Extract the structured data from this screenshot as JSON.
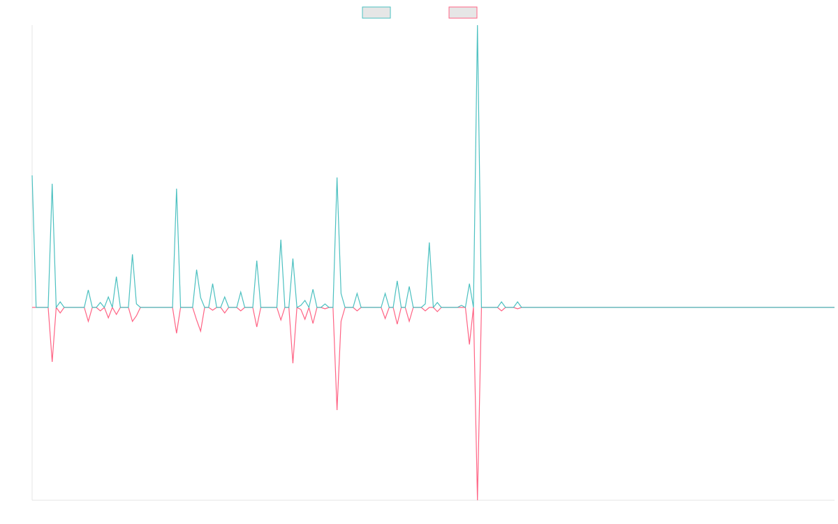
{
  "chart_data": {
    "type": "line",
    "legend": "top",
    "x": [
      0,
      1,
      2,
      3,
      4,
      5,
      6,
      7,
      8,
      9,
      10,
      11,
      12,
      13,
      14,
      15,
      16,
      17,
      18,
      19,
      20,
      21,
      22,
      23,
      24,
      25,
      26,
      27,
      28,
      29,
      30,
      31,
      32,
      33,
      34,
      35,
      36,
      37,
      38,
      39,
      40,
      41,
      42,
      43,
      44,
      45,
      46,
      47,
      48,
      49,
      50,
      51,
      52,
      53,
      54,
      55,
      56,
      57,
      58,
      59,
      60,
      61,
      62,
      63,
      64,
      65,
      66,
      67,
      68,
      69,
      70,
      71,
      72,
      73,
      74,
      75,
      76,
      77,
      78,
      79,
      80,
      81,
      82,
      83,
      84,
      85,
      86,
      87,
      88,
      89,
      90,
      91,
      92,
      93,
      94,
      95,
      96,
      97,
      98,
      99,
      100,
      101,
      102,
      103,
      104,
      105,
      106,
      107,
      108,
      109,
      110,
      111,
      112,
      113,
      114,
      115,
      116,
      117,
      118,
      119,
      120,
      121,
      122,
      200
    ],
    "xlim": [
      0,
      200
    ],
    "ylim": [
      -276,
      404
    ],
    "series": [
      {
        "color": "#ff6384",
        "values": [
          0,
          0,
          0,
          0,
          0,
          -78,
          0,
          -8,
          0,
          0,
          0,
          0,
          0,
          0,
          -20,
          0,
          0,
          -5,
          0,
          -15,
          0,
          -10,
          0,
          0,
          0,
          -20,
          -12,
          0,
          0,
          0,
          0,
          0,
          0,
          0,
          0,
          0,
          -37,
          0,
          0,
          0,
          0,
          -18,
          -34,
          0,
          0,
          -4,
          0,
          0,
          -8,
          0,
          0,
          0,
          -5,
          0,
          0,
          0,
          -28,
          0,
          0,
          0,
          0,
          0,
          -18,
          0,
          0,
          -80,
          0,
          -3,
          -17,
          0,
          -23,
          0,
          0,
          -2,
          0,
          0,
          -147,
          -20,
          0,
          0,
          0,
          -5,
          0,
          0,
          0,
          0,
          0,
          0,
          -16,
          0,
          0,
          -24,
          0,
          0,
          -20,
          0,
          0,
          0,
          -5,
          0,
          0,
          -6,
          0,
          0,
          0,
          0,
          0,
          0,
          0,
          -53,
          0,
          -276,
          0,
          0,
          0,
          0,
          0,
          -5,
          0,
          0,
          0,
          -2,
          0,
          0
        ]
      },
      {
        "color": "#4bc0c0",
        "values": [
          189,
          0,
          0,
          0,
          0,
          177,
          0,
          8,
          0,
          0,
          0,
          0,
          0,
          0,
          25,
          0,
          0,
          7,
          0,
          15,
          0,
          44,
          0,
          0,
          0,
          76,
          5,
          0,
          0,
          0,
          0,
          0,
          0,
          0,
          0,
          0,
          170,
          0,
          0,
          0,
          0,
          54,
          14,
          0,
          0,
          34,
          0,
          0,
          15,
          0,
          0,
          0,
          22,
          0,
          0,
          0,
          67,
          0,
          0,
          0,
          0,
          0,
          97,
          0,
          0,
          70,
          0,
          3,
          10,
          0,
          26,
          0,
          0,
          5,
          0,
          0,
          186,
          20,
          0,
          0,
          0,
          20,
          0,
          0,
          0,
          0,
          0,
          0,
          20,
          0,
          0,
          38,
          0,
          0,
          30,
          0,
          0,
          0,
          5,
          93,
          0,
          7,
          0,
          0,
          0,
          0,
          0,
          3,
          0,
          34,
          0,
          404,
          0,
          0,
          0,
          0,
          0,
          8,
          0,
          0,
          0,
          8,
          0,
          0
        ]
      }
    ]
  }
}
